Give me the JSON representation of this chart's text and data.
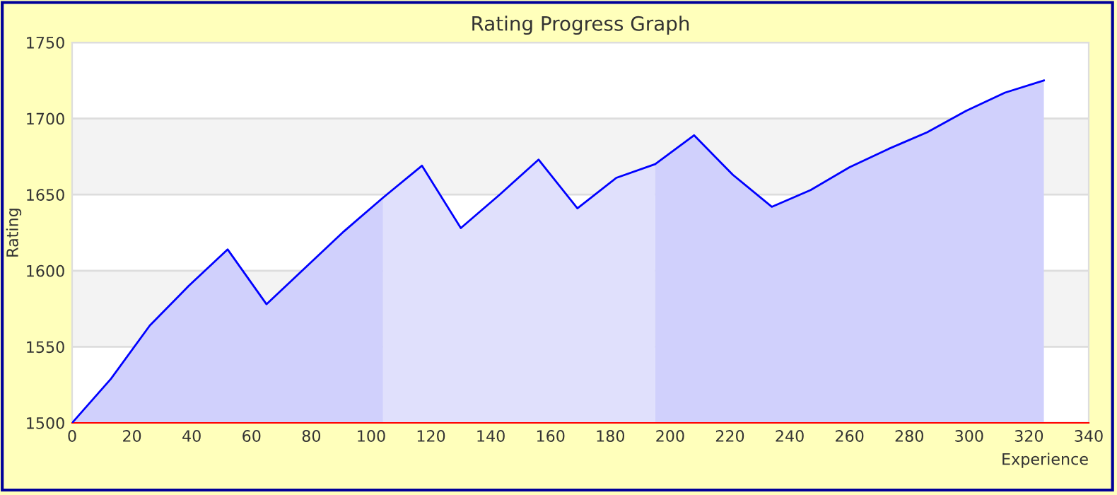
{
  "chart_data": {
    "type": "area",
    "title": "Rating Progress Graph",
    "xlabel": "Experience",
    "ylabel": "Rating",
    "xlim": [
      0,
      340
    ],
    "xticks": [
      0,
      20,
      40,
      60,
      80,
      100,
      120,
      140,
      160,
      180,
      200,
      220,
      240,
      260,
      280,
      300,
      320,
      340
    ],
    "ylim": [
      1500,
      1750
    ],
    "yticks": [
      1500,
      1550,
      1600,
      1650,
      1700,
      1750
    ],
    "grid": "y",
    "legend": false,
    "series": [
      {
        "color": "#d0d0fc",
        "x": [
          0,
          13,
          26,
          39,
          52,
          65,
          78,
          91,
          104
        ],
        "values": [
          1500,
          1529,
          1564,
          1590,
          1614,
          1578,
          1602,
          1626,
          1648
        ]
      },
      {
        "color": "#e0e0fc",
        "x": [
          104,
          117,
          130,
          143,
          156,
          169,
          182,
          195
        ],
        "values": [
          1648,
          1669,
          1628,
          1650,
          1673,
          1641,
          1661,
          1670
        ]
      },
      {
        "color": "#d0d0fc",
        "x": [
          195,
          208,
          221,
          234,
          247,
          260,
          273,
          286,
          299,
          312,
          325
        ],
        "values": [
          1670,
          1689,
          1663,
          1642,
          1653,
          1668,
          1680,
          1691,
          1705,
          1717,
          1725
        ]
      },
      {
        "type": "line",
        "color": "#0000ff",
        "x": [
          0,
          13,
          26,
          39,
          52,
          65,
          78,
          91,
          104,
          117,
          130,
          143,
          156,
          169,
          182,
          195,
          208,
          221,
          234,
          247,
          260,
          273,
          286,
          299,
          312,
          325
        ],
        "values": [
          1500,
          1529,
          1564,
          1590,
          1614,
          1578,
          1602,
          1626,
          1648,
          1669,
          1628,
          1650,
          1673,
          1641,
          1661,
          1670,
          1689,
          1663,
          1642,
          1653,
          1668,
          1680,
          1691,
          1705,
          1717,
          1725
        ]
      }
    ]
  }
}
